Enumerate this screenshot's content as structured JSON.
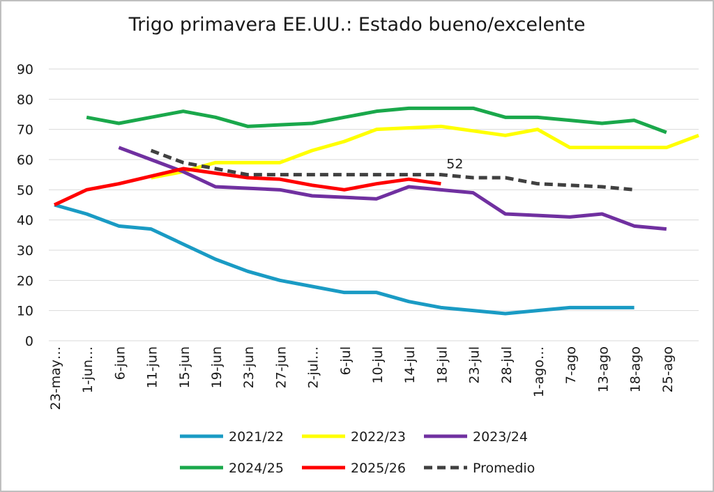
{
  "chart_data": {
    "type": "line",
    "title": "Trigo primavera EE.UU.: Estado bueno/excelente",
    "categories": [
      "23-may…",
      "1-jun…",
      "6-jun",
      "11-jun",
      "15-jun",
      "19-jun",
      "23-jun",
      "27-jun",
      "2-jul…",
      "6-jul",
      "10-jul",
      "14-jul",
      "18-jul",
      "23-jul",
      "28-jul",
      "1-ago…",
      "7-ago",
      "13-ago",
      "18-ago",
      "25-ago",
      null
    ],
    "series": [
      {
        "name": "2021/22",
        "color": "#1a9bc4",
        "values": [
          45,
          42,
          38,
          37,
          32,
          27,
          23,
          20,
          18,
          16,
          16,
          13,
          11,
          10,
          9,
          10,
          11,
          11,
          11,
          null,
          null
        ]
      },
      {
        "name": "2022/23",
        "color": "#ffff00",
        "values": [
          null,
          null,
          null,
          54,
          56,
          59,
          59,
          59,
          63,
          66,
          70,
          70.5,
          71,
          69.5,
          68,
          70,
          64,
          64,
          64,
          64,
          68
        ]
      },
      {
        "name": "2023/24",
        "color": "#7030a0",
        "values": [
          null,
          null,
          64,
          60,
          56,
          51,
          50.5,
          50,
          48,
          47.5,
          47,
          51,
          50,
          49,
          42,
          41.5,
          41,
          42,
          38,
          37,
          null
        ]
      },
      {
        "name": "2024/25",
        "color": "#1aa84b",
        "values": [
          null,
          74,
          72,
          74,
          76,
          74,
          71,
          71.5,
          72,
          74,
          76,
          77,
          77,
          77,
          74,
          74,
          73,
          72,
          73,
          69,
          null
        ]
      },
      {
        "name": "2025/26",
        "color": "#ff0000",
        "values": [
          45,
          50,
          52,
          54.5,
          57,
          55.5,
          54,
          53.5,
          51.5,
          50,
          52,
          53.5,
          52,
          null,
          null,
          null,
          null,
          null,
          null,
          null,
          null
        ]
      },
      {
        "name": "Promedio",
        "color": "#404040",
        "dashed": true,
        "values": [
          null,
          null,
          null,
          63,
          59,
          57,
          55,
          55,
          55,
          55,
          55,
          55,
          55,
          54,
          54,
          52,
          51.5,
          51,
          50,
          null,
          null
        ]
      }
    ],
    "annotation": "52",
    "ylim": [
      0,
      90
    ],
    "yticks": [
      0,
      10,
      20,
      30,
      40,
      50,
      60,
      70,
      80,
      90
    ],
    "grid": true
  }
}
